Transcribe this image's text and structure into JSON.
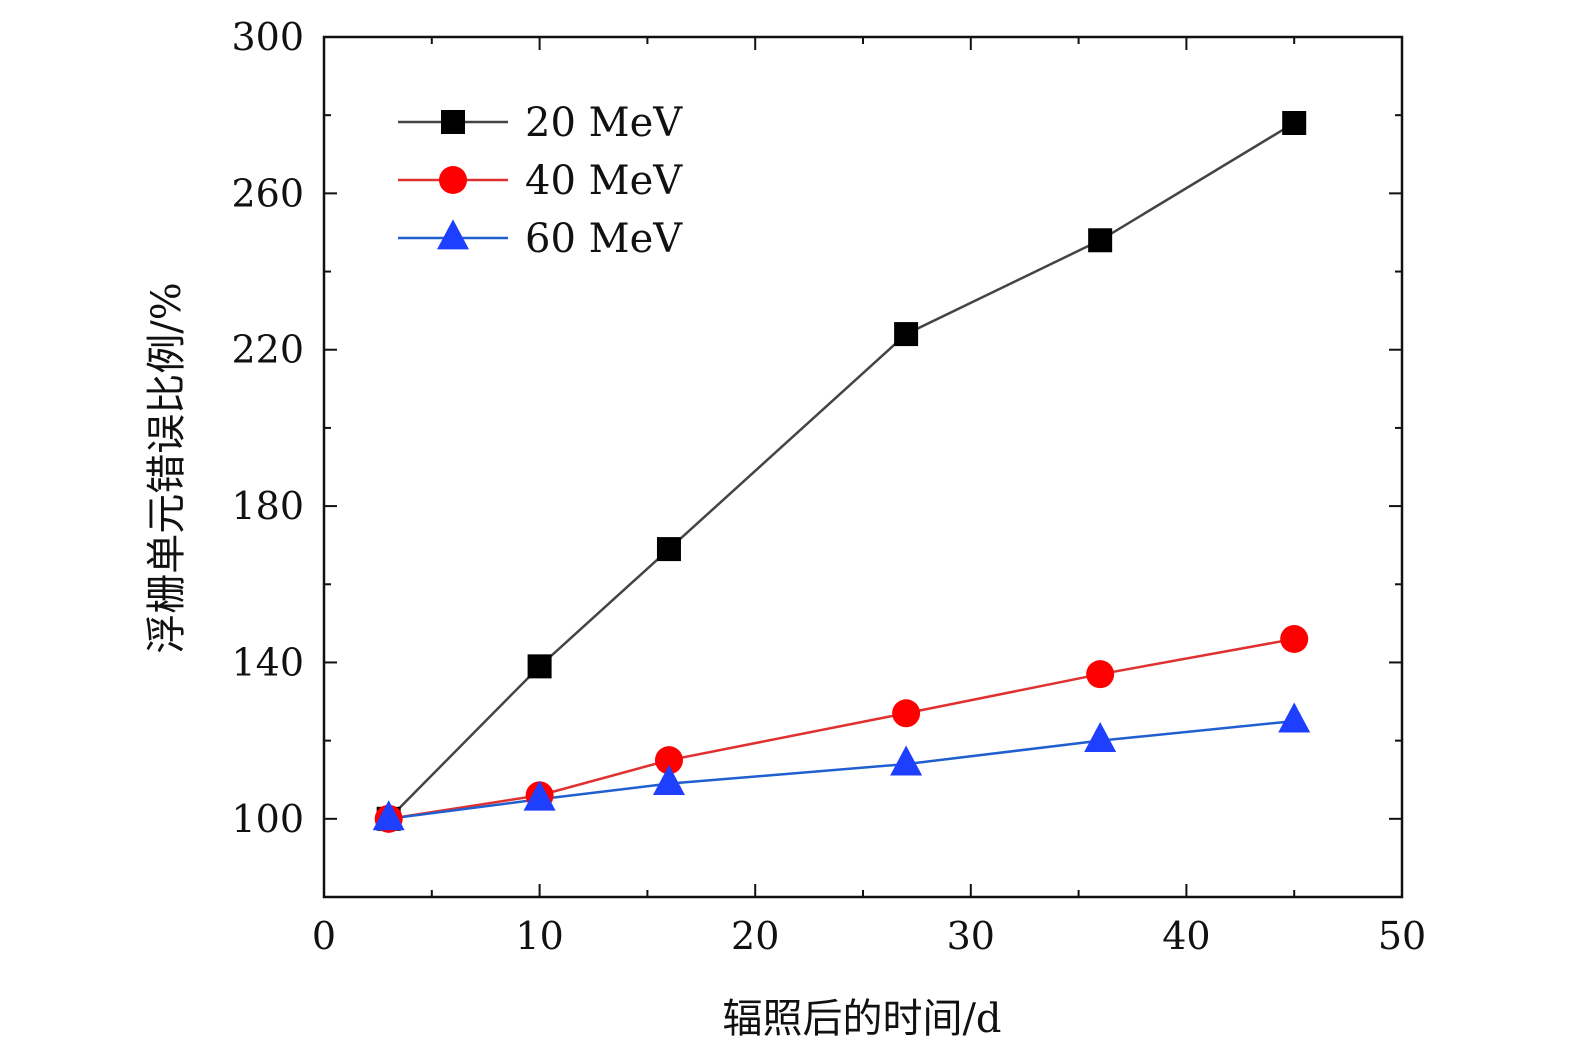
{
  "chart_data": {
    "type": "line",
    "title": "",
    "xlabel": "辐照后的时间/d",
    "ylabel": "浮栅单元错误比例/%",
    "xlim": [
      0,
      50
    ],
    "ylim": [
      80,
      300
    ],
    "x_ticks": [
      0,
      10,
      20,
      30,
      40,
      50
    ],
    "x_minor_ticks": [
      5,
      15,
      25,
      35,
      45
    ],
    "y_ticks": [
      100,
      140,
      180,
      220,
      260,
      300
    ],
    "y_minor_ticks": [
      120,
      160,
      200,
      240,
      280
    ],
    "grid": false,
    "legend_position": "top-left",
    "x": [
      3,
      10,
      16,
      27,
      36,
      45
    ],
    "series": [
      {
        "name": "20 MeV",
        "values": [
          100,
          139,
          169,
          224,
          248,
          278
        ],
        "marker": "square",
        "marker_color": "#000000",
        "line_color": "#444444"
      },
      {
        "name": "40 MeV",
        "values": [
          100,
          106,
          115,
          127,
          137,
          146
        ],
        "marker": "circle",
        "marker_color": "#ff0000",
        "line_color": "#e03030"
      },
      {
        "name": "60 MeV",
        "values": [
          100,
          105,
          109,
          114,
          120,
          125
        ],
        "marker": "triangle",
        "marker_color": "#1f3fff",
        "line_color": "#1f5fd0"
      }
    ]
  }
}
